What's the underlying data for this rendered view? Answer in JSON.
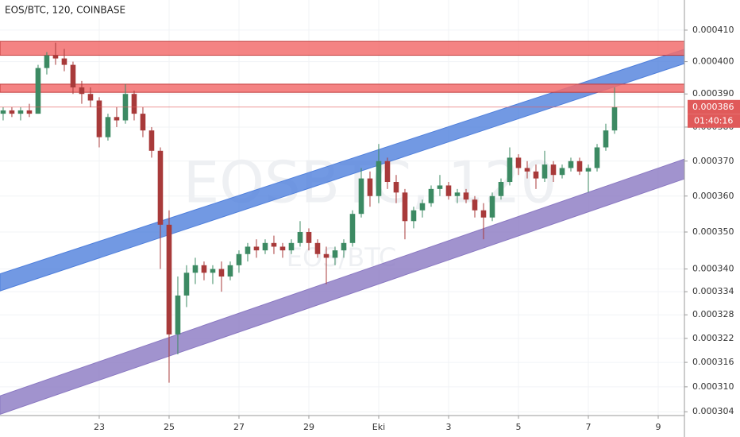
{
  "chart_data": {
    "type": "candlestick",
    "title": "EOS/BTC, 120, COINBASE",
    "watermark": "EOSBTC, 120",
    "watermark_sub": "EOS/BTC",
    "log_scale": true,
    "grid": true,
    "up_color": "#3c8a63",
    "down_color": "#a83a3a",
    "xlim": [
      -2.84,
      16.75
    ],
    "ylim": [
      0.0003031,
      0.0004198
    ],
    "xticks": [
      {
        "value": 0,
        "label": "23"
      },
      {
        "value": 2,
        "label": "25"
      },
      {
        "value": 4,
        "label": "27"
      },
      {
        "value": 6,
        "label": "29"
      },
      {
        "value": 8,
        "label": "Eki"
      },
      {
        "value": 10,
        "label": "3"
      },
      {
        "value": 12,
        "label": "5"
      },
      {
        "value": 14,
        "label": "7"
      },
      {
        "value": 16,
        "label": "9"
      }
    ],
    "yticks": [
      {
        "value": 0.00041,
        "label": "0.000410"
      },
      {
        "value": 0.0004,
        "label": "0.000400"
      },
      {
        "value": 0.00039,
        "label": "0.000390"
      },
      {
        "value": 0.00038,
        "label": "0.000380"
      },
      {
        "value": 0.00037,
        "label": "0.000370"
      },
      {
        "value": 0.00036,
        "label": "0.000360"
      },
      {
        "value": 0.00035,
        "label": "0.000350"
      },
      {
        "value": 0.00034,
        "label": "0.000340"
      },
      {
        "value": 0.000334,
        "label": "0.000334"
      },
      {
        "value": 0.000328,
        "label": "0.000328"
      },
      {
        "value": 0.000322,
        "label": "0.000322"
      },
      {
        "value": 0.000316,
        "label": "0.000316"
      },
      {
        "value": 0.00031,
        "label": "0.000310"
      },
      {
        "value": 0.000304,
        "label": "0.000304"
      }
    ],
    "x": [
      -2.75,
      -2.5,
      -2.25,
      -2,
      -1.75,
      -1.5,
      -1.25,
      -1,
      -0.75,
      -0.5,
      -0.25,
      0,
      0.25,
      0.5,
      0.75,
      1,
      1.25,
      1.5,
      1.75,
      2,
      2.25,
      2.5,
      2.75,
      3,
      3.25,
      3.5,
      3.75,
      4,
      4.25,
      4.5,
      4.75,
      5,
      5.25,
      5.5,
      5.75,
      6,
      6.25,
      6.5,
      6.75,
      7,
      7.25,
      7.5,
      7.75,
      8,
      8.25,
      8.5,
      8.75,
      9,
      9.25,
      9.5,
      9.75,
      10,
      10.25,
      10.5,
      10.75,
      11,
      11.25,
      11.5,
      11.75,
      12,
      12.25,
      12.5,
      12.75,
      13,
      13.25,
      13.5,
      13.75,
      14,
      14.25,
      14.5,
      14.75
    ],
    "ohlc": [
      [
        0.000384,
        0.000386,
        0.000382,
        0.000385
      ],
      [
        0.000385,
        0.000386,
        0.000383,
        0.000384
      ],
      [
        0.000384,
        0.000386,
        0.000382,
        0.000385
      ],
      [
        0.000385,
        0.000387,
        0.000383,
        0.000384
      ],
      [
        0.000384,
        0.000399,
        0.000384,
        0.000398
      ],
      [
        0.000398,
        0.000403,
        0.000396,
        0.000402
      ],
      [
        0.000402,
        0.000406,
        0.000399,
        0.000401
      ],
      [
        0.000401,
        0.000404,
        0.000397,
        0.000399
      ],
      [
        0.000399,
        0.0004,
        0.00039,
        0.000392
      ],
      [
        0.000392,
        0.000394,
        0.000387,
        0.00039
      ],
      [
        0.00039,
        0.000392,
        0.000386,
        0.000388
      ],
      [
        0.000388,
        0.000389,
        0.000374,
        0.000377
      ],
      [
        0.000377,
        0.000384,
        0.000376,
        0.000383
      ],
      [
        0.000383,
        0.000386,
        0.00038,
        0.000382
      ],
      [
        0.000382,
        0.000393,
        0.000381,
        0.00039
      ],
      [
        0.00039,
        0.000391,
        0.000382,
        0.000384
      ],
      [
        0.000384,
        0.000386,
        0.000377,
        0.000379
      ],
      [
        0.000379,
        0.00038,
        0.000371,
        0.000373
      ],
      [
        0.000373,
        0.000374,
        0.00034,
        0.000352
      ],
      [
        0.000352,
        0.000356,
        0.000311,
        0.000323
      ],
      [
        0.000323,
        0.000338,
        0.000318,
        0.000333
      ],
      [
        0.000333,
        0.000341,
        0.00033,
        0.000339
      ],
      [
        0.000339,
        0.000343,
        0.000336,
        0.000341
      ],
      [
        0.000341,
        0.000342,
        0.000337,
        0.000339
      ],
      [
        0.000339,
        0.000341,
        0.000336,
        0.00034
      ],
      [
        0.00034,
        0.000342,
        0.000334,
        0.000338
      ],
      [
        0.000338,
        0.000342,
        0.000337,
        0.000341
      ],
      [
        0.000341,
        0.000345,
        0.000339,
        0.000344
      ],
      [
        0.000344,
        0.000347,
        0.000342,
        0.000346
      ],
      [
        0.000346,
        0.000348,
        0.000343,
        0.000345
      ],
      [
        0.000345,
        0.000348,
        0.000344,
        0.000347
      ],
      [
        0.000347,
        0.000349,
        0.000344,
        0.000346
      ],
      [
        0.000346,
        0.000347,
        0.000343,
        0.000345
      ],
      [
        0.000345,
        0.000348,
        0.000344,
        0.000347
      ],
      [
        0.000347,
        0.000353,
        0.000346,
        0.00035
      ],
      [
        0.00035,
        0.000351,
        0.000345,
        0.000347
      ],
      [
        0.000347,
        0.000348,
        0.000343,
        0.000344
      ],
      [
        0.000344,
        0.000346,
        0.000336,
        0.000343
      ],
      [
        0.000343,
        0.000346,
        0.000341,
        0.000345
      ],
      [
        0.000345,
        0.000348,
        0.000343,
        0.000347
      ],
      [
        0.000347,
        0.000356,
        0.000346,
        0.000355
      ],
      [
        0.000355,
        0.000368,
        0.000354,
        0.000365
      ],
      [
        0.000365,
        0.000367,
        0.000357,
        0.00036
      ],
      [
        0.00036,
        0.000375,
        0.000358,
        0.00037
      ],
      [
        0.00037,
        0.000371,
        0.000362,
        0.000364
      ],
      [
        0.000364,
        0.000366,
        0.000358,
        0.000361
      ],
      [
        0.000361,
        0.000362,
        0.000348,
        0.000353
      ],
      [
        0.000353,
        0.000357,
        0.000351,
        0.000356
      ],
      [
        0.000356,
        0.000359,
        0.000354,
        0.000358
      ],
      [
        0.000358,
        0.000363,
        0.000357,
        0.000362
      ],
      [
        0.000362,
        0.000366,
        0.00036,
        0.000363
      ],
      [
        0.000363,
        0.000364,
        0.000359,
        0.00036
      ],
      [
        0.00036,
        0.000362,
        0.000358,
        0.000361
      ],
      [
        0.000361,
        0.000362,
        0.000358,
        0.000359
      ],
      [
        0.000359,
        0.00036,
        0.000354,
        0.000356
      ],
      [
        0.000356,
        0.000358,
        0.000348,
        0.000354
      ],
      [
        0.000354,
        0.000361,
        0.000353,
        0.00036
      ],
      [
        0.00036,
        0.000365,
        0.000359,
        0.000364
      ],
      [
        0.000364,
        0.000374,
        0.000363,
        0.000371
      ],
      [
        0.000371,
        0.000372,
        0.000366,
        0.000368
      ],
      [
        0.000368,
        0.00037,
        0.000365,
        0.000367
      ],
      [
        0.000367,
        0.000369,
        0.000362,
        0.000365
      ],
      [
        0.000365,
        0.000373,
        0.000364,
        0.000369
      ],
      [
        0.000369,
        0.00037,
        0.000364,
        0.000366
      ],
      [
        0.000366,
        0.000369,
        0.000365,
        0.000368
      ],
      [
        0.000368,
        0.000371,
        0.000367,
        0.00037
      ],
      [
        0.00037,
        0.000371,
        0.000366,
        0.000367
      ],
      [
        0.000367,
        0.000369,
        0.000361,
        0.000368
      ],
      [
        0.000368,
        0.000375,
        0.000367,
        0.000374
      ],
      [
        0.000374,
        0.000381,
        0.000373,
        0.000379
      ],
      [
        0.000379,
        0.000392,
        0.000378,
        0.000386
      ]
    ],
    "zones": [
      {
        "low": 0.000402,
        "high": 0.0004064,
        "color": "#f26d6d"
      },
      {
        "low": 0.0003905,
        "high": 0.000393,
        "color": "#f26d6d"
      }
    ],
    "channels": [
      {
        "x": [
          -2.84,
          16.75
        ],
        "lower": [
          0.0003342,
          0.0003994
        ],
        "upper": [
          0.0003387,
          0.0004039
        ],
        "color": "#4f7fdc"
      },
      {
        "x": [
          -2.84,
          16.75
        ],
        "lower": [
          0.0003034,
          0.0003649
        ],
        "upper": [
          0.0003078,
          0.0003706
        ],
        "color": "#8a78c2"
      }
    ],
    "last_price": {
      "value": 0.000386,
      "label": "0.000386"
    },
    "countdown": "01:40:16"
  }
}
